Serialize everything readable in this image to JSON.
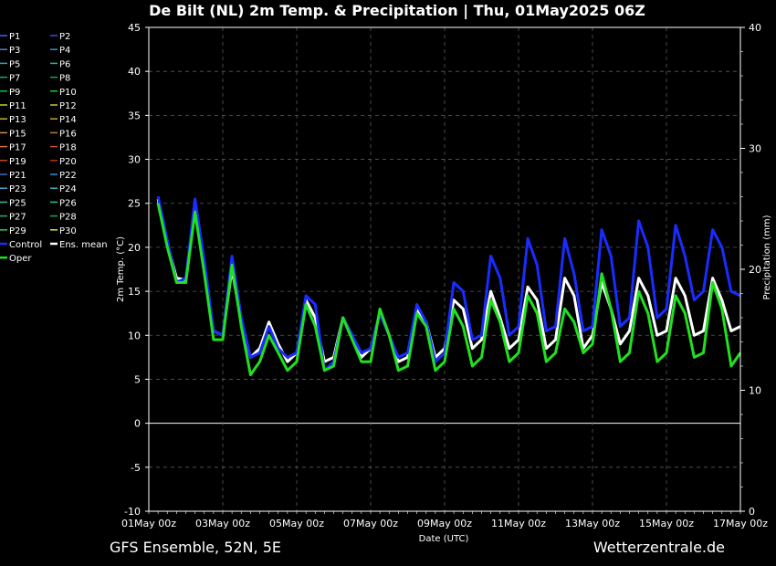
{
  "chart_data": {
    "type": "line",
    "title": "De Bilt  (NL)  2m Temp. & Precipitation | Thu, 01May2025 06Z",
    "ylabel": "2m Temp. (°C)",
    "y2label": "Precipitation (mm)",
    "xlabel": "Date (UTC)",
    "ylim": [
      -10,
      45
    ],
    "y2lim": [
      0,
      40
    ],
    "xlim": [
      0,
      16
    ],
    "yticks": [
      "45",
      "40",
      "35",
      "30",
      "25",
      "20",
      "15",
      "10",
      "5",
      "0",
      "-5",
      "-10"
    ],
    "y2ticks": [
      "40",
      "30",
      "20",
      "10",
      "0"
    ],
    "xticks": [
      "01May 00z",
      "03May 00z",
      "05May 00z",
      "07May 00z",
      "09May 00z",
      "11May 00z",
      "13May 00z",
      "15May 00z",
      "17May 00z"
    ],
    "grid": true,
    "legend_position": "left",
    "footer_left": "GFS Ensemble, 52N, 5E",
    "footer_right": "Wetterzentrale.de",
    "legend": [
      {
        "name": "P1",
        "color": "#4a5cff"
      },
      {
        "name": "P2",
        "color": "#3a4cf0"
      },
      {
        "name": "P3",
        "color": "#5a7ad8"
      },
      {
        "name": "P4",
        "color": "#3f8fc8"
      },
      {
        "name": "P5",
        "color": "#2fa6c4"
      },
      {
        "name": "P6",
        "color": "#22b89a"
      },
      {
        "name": "P7",
        "color": "#1fa97a"
      },
      {
        "name": "P8",
        "color": "#1a9f5c"
      },
      {
        "name": "P9",
        "color": "#18b84a"
      },
      {
        "name": "P10",
        "color": "#22cc22"
      },
      {
        "name": "P11",
        "color": "#c8d030"
      },
      {
        "name": "P12",
        "color": "#d8c030"
      },
      {
        "name": "P13",
        "color": "#c8b040"
      },
      {
        "name": "P14",
        "color": "#d0a030"
      },
      {
        "name": "P15",
        "color": "#c89050"
      },
      {
        "name": "P16",
        "color": "#c07838"
      },
      {
        "name": "P17",
        "color": "#d07040"
      },
      {
        "name": "P18",
        "color": "#c85030"
      },
      {
        "name": "P19",
        "color": "#d04030"
      },
      {
        "name": "P20",
        "color": "#b83020"
      },
      {
        "name": "P21",
        "color": "#3a6ad8"
      },
      {
        "name": "P22",
        "color": "#2f8ad0"
      },
      {
        "name": "P23",
        "color": "#4aa0d8"
      },
      {
        "name": "P24",
        "color": "#38b0c8"
      },
      {
        "name": "P25",
        "color": "#2ab8a8"
      },
      {
        "name": "P26",
        "color": "#28c090"
      },
      {
        "name": "P27",
        "color": "#22b070"
      },
      {
        "name": "P28",
        "color": "#1aa858"
      },
      {
        "name": "P29",
        "color": "#30d040"
      },
      {
        "name": "P30",
        "color": "#e0e040"
      },
      {
        "name": "Control",
        "color": "#1a2cff"
      },
      {
        "name": "Ens. mean",
        "color": "#ffffff"
      },
      {
        "name": "Oper",
        "color": "#20e020"
      }
    ],
    "series": [
      {
        "name": "Ens. mean",
        "color": "#ffffff",
        "x": [
          0.25,
          0.5,
          0.75,
          1.0,
          1.25,
          1.5,
          1.75,
          2.0,
          2.25,
          2.5,
          2.75,
          3.0,
          3.25,
          3.5,
          3.75,
          4.0,
          4.25,
          4.5,
          4.75,
          5.0,
          5.25,
          5.5,
          5.75,
          6.0,
          6.25,
          6.5,
          6.75,
          7.0,
          7.25,
          7.5,
          7.75,
          8.0,
          8.25,
          8.5,
          8.75,
          9.0,
          9.25,
          9.5,
          9.75,
          10.0,
          10.25,
          10.5,
          10.75,
          11.0,
          11.25,
          11.5,
          11.75,
          12.0,
          12.25,
          12.5,
          12.75,
          13.0,
          13.25,
          13.5,
          13.75,
          14.0,
          14.25,
          14.5,
          14.75,
          15.0,
          15.25,
          15.5,
          15.75,
          16.0
        ],
        "y": [
          25.5,
          20.5,
          16.5,
          16.3,
          24.5,
          17.5,
          10.5,
          10.0,
          17.5,
          11.5,
          7.5,
          8.5,
          11.5,
          9.0,
          7.0,
          8.0,
          14.0,
          12.0,
          7.0,
          7.5,
          12.0,
          10.0,
          7.5,
          8.5,
          12.5,
          10.0,
          7.0,
          7.5,
          13.0,
          11.5,
          7.5,
          8.5,
          14.0,
          13.0,
          8.5,
          9.5,
          15.0,
          12.0,
          8.5,
          9.5,
          15.5,
          14.0,
          8.5,
          9.5,
          16.5,
          14.5,
          8.5,
          10.0,
          16.0,
          13.0,
          9.0,
          10.5,
          16.5,
          14.5,
          10.0,
          10.5,
          16.5,
          14.5,
          10.0,
          10.5,
          16.5,
          14.0,
          10.5,
          11.0
        ]
      },
      {
        "name": "Control",
        "color": "#1a2cff",
        "x": [
          0.25,
          0.5,
          0.75,
          1.0,
          1.25,
          1.5,
          1.75,
          2.0,
          2.25,
          2.5,
          2.75,
          3.0,
          3.25,
          3.5,
          3.75,
          4.0,
          4.25,
          4.5,
          4.75,
          5.0,
          5.25,
          5.5,
          5.75,
          6.0,
          6.25,
          6.5,
          6.75,
          7.0,
          7.25,
          7.5,
          7.75,
          8.0,
          8.25,
          8.5,
          8.75,
          9.0,
          9.25,
          9.5,
          9.75,
          10.0,
          10.25,
          10.5,
          10.75,
          11.0,
          11.25,
          11.5,
          11.75,
          12.0,
          12.25,
          12.5,
          12.75,
          13.0,
          13.25,
          13.5,
          13.75,
          14.0,
          14.25,
          14.5,
          14.75,
          15.0,
          15.25,
          15.5,
          15.75,
          16.0
        ],
        "y": [
          25.8,
          20.8,
          16.0,
          16.5,
          25.5,
          18.5,
          10.5,
          10.0,
          19.0,
          12.0,
          7.5,
          8.0,
          11.0,
          8.5,
          7.5,
          8.0,
          14.5,
          13.5,
          6.0,
          7.0,
          12.0,
          10.0,
          8.0,
          8.5,
          12.5,
          10.0,
          7.5,
          8.0,
          13.5,
          11.5,
          7.0,
          8.0,
          16.0,
          15.0,
          9.5,
          10.0,
          19.0,
          16.5,
          10.0,
          11.0,
          21.0,
          18.0,
          10.5,
          11.0,
          21.0,
          17.0,
          10.5,
          11.0,
          22.0,
          19.0,
          11.0,
          12.0,
          23.0,
          20.0,
          12.0,
          13.0,
          22.5,
          19.0,
          14.0,
          15.0,
          22.0,
          20.0,
          15.0,
          14.5
        ]
      },
      {
        "name": "Oper",
        "color": "#20e020",
        "x": [
          0.25,
          0.5,
          0.75,
          1.0,
          1.25,
          1.5,
          1.75,
          2.0,
          2.25,
          2.5,
          2.75,
          3.0,
          3.25,
          3.5,
          3.75,
          4.0,
          4.25,
          4.5,
          4.75,
          5.0,
          5.25,
          5.5,
          5.75,
          6.0,
          6.25,
          6.5,
          6.75,
          7.0,
          7.25,
          7.5,
          7.75,
          8.0,
          8.25,
          8.5,
          8.75,
          9.0,
          9.25,
          9.5,
          9.75,
          10.0,
          10.25,
          10.5,
          10.75,
          11.0,
          11.25,
          11.5,
          11.75,
          12.0,
          12.25,
          12.5,
          12.75,
          13.0,
          13.25,
          13.5,
          13.75,
          14.0,
          14.25,
          14.5,
          14.75,
          15.0,
          15.25,
          15.5,
          15.75,
          16.0
        ],
        "y": [
          25.0,
          20.0,
          16.0,
          16.0,
          24.0,
          17.0,
          9.5,
          9.5,
          18.0,
          11.0,
          5.5,
          7.0,
          10.0,
          8.0,
          6.0,
          7.0,
          13.5,
          11.0,
          6.0,
          6.5,
          12.0,
          9.5,
          7.0,
          7.0,
          13.0,
          10.0,
          6.0,
          6.5,
          12.5,
          11.0,
          6.0,
          7.0,
          13.0,
          11.0,
          6.5,
          7.5,
          14.0,
          11.5,
          7.0,
          8.0,
          14.5,
          12.5,
          7.0,
          8.0,
          13.0,
          11.5,
          8.0,
          9.0,
          17.0,
          13.0,
          7.0,
          8.0,
          15.0,
          12.5,
          7.0,
          8.0,
          14.5,
          12.5,
          7.5,
          8.0,
          16.0,
          13.0,
          6.5,
          8.0
        ]
      }
    ]
  }
}
